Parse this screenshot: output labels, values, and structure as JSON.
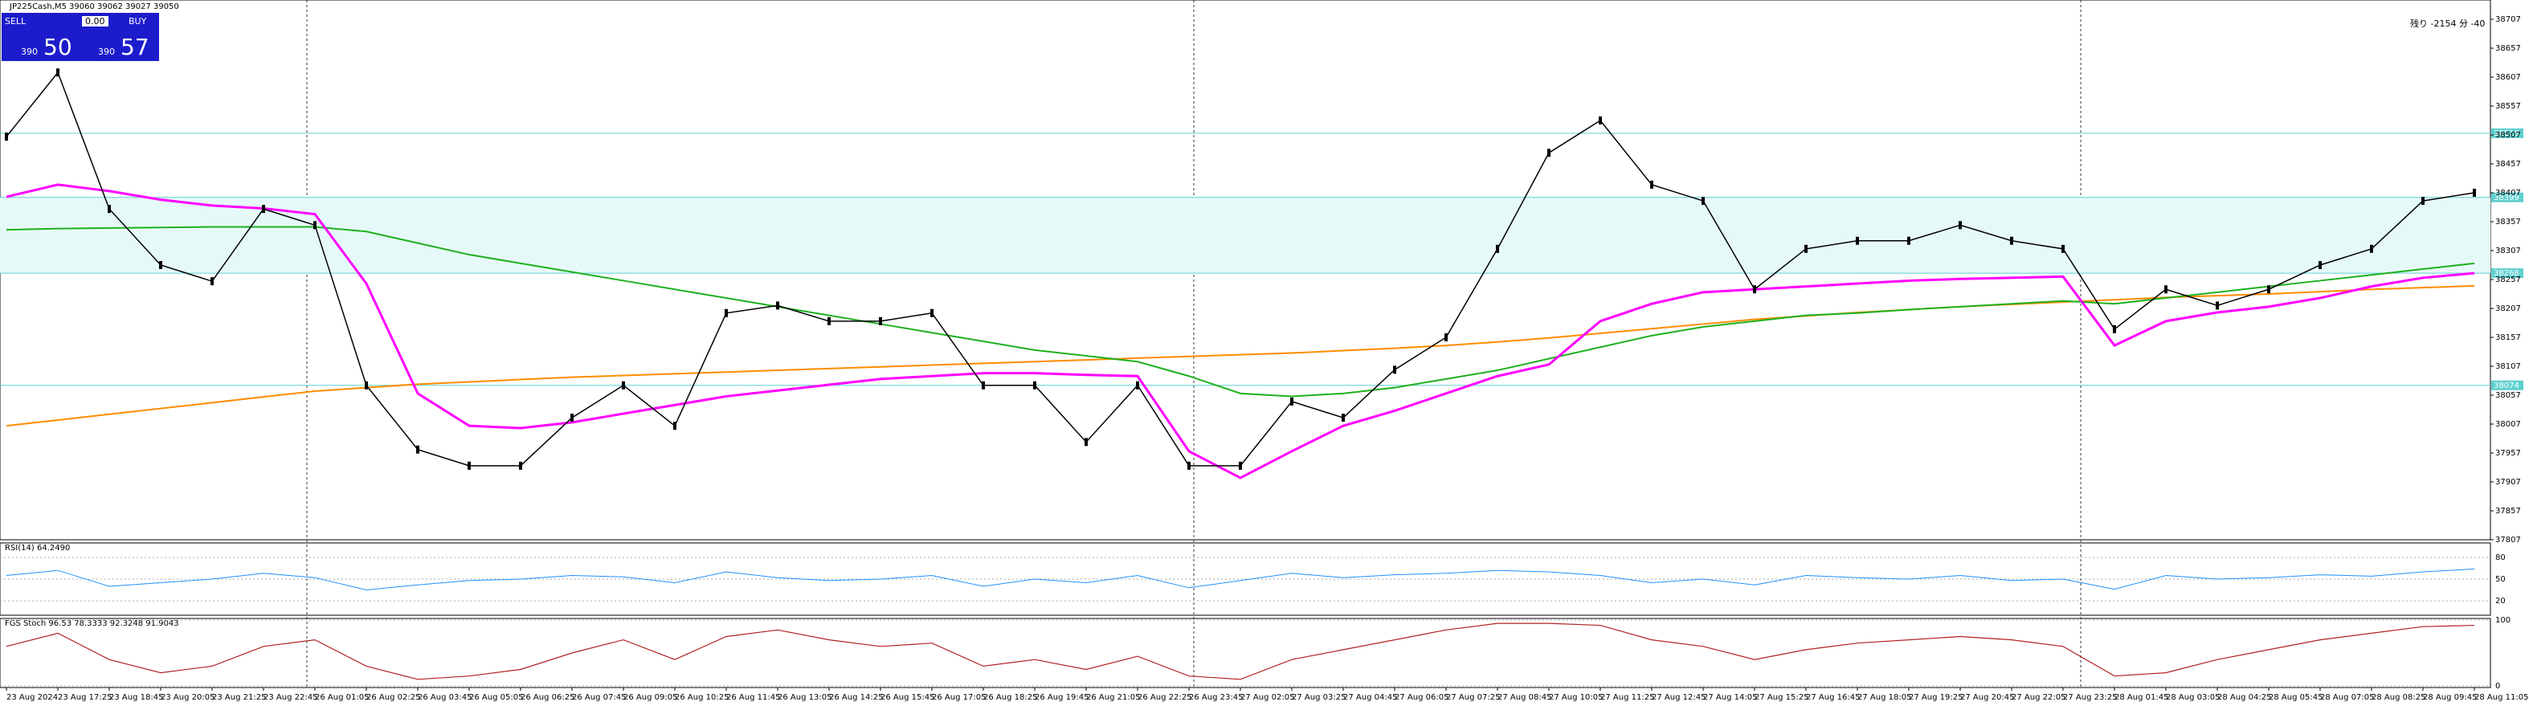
{
  "header": {
    "symbol": "JP225Cash,M5",
    "ohlc": "39060 39062 39027 39050"
  },
  "trade_panel": {
    "sell": "SELL",
    "lots": "0.00",
    "buy": "BUY",
    "sell_small": "390",
    "sell_big": "50",
    "buy_small": "390",
    "buy_big": "57"
  },
  "timer": "残り -2154 分 -40",
  "chart": {
    "price_ticks": [
      38707,
      38657,
      38607,
      38557,
      38507,
      38457,
      38407,
      38357,
      38307,
      38257,
      38207,
      38157,
      38107,
      38057,
      38007,
      37957,
      37907,
      37857,
      37807
    ],
    "levels": [
      38510,
      38399,
      38268,
      38074
    ],
    "time_labels": [
      "23 Aug 2024",
      "23 Aug 17:25",
      "23 Aug 18:45",
      "23 Aug 20:05",
      "23 Aug 21:25",
      "23 Aug 22:45",
      "26 Aug 01:05",
      "26 Aug 02:25",
      "26 Aug 03:45",
      "26 Aug 05:05",
      "26 Aug 06:25",
      "26 Aug 07:45",
      "26 Aug 09:05",
      "26 Aug 10:25",
      "26 Aug 11:45",
      "26 Aug 13:05",
      "26 Aug 14:25",
      "26 Aug 15:45",
      "26 Aug 17:05",
      "26 Aug 18:25",
      "26 Aug 19:45",
      "26 Aug 21:05",
      "26 Aug 22:25",
      "26 Aug 23:45",
      "27 Aug 02:05",
      "27 Aug 03:25",
      "27 Aug 04:45",
      "27 Aug 06:05",
      "27 Aug 07:25",
      "27 Aug 08:45",
      "27 Aug 10:05",
      "27 Aug 11:25",
      "27 Aug 12:45",
      "27 Aug 14:05",
      "27 Aug 15:25",
      "27 Aug 16:45",
      "27 Aug 18:05",
      "27 Aug 19:25",
      "27 Aug 20:45",
      "27 Aug 22:05",
      "27 Aug 23:25",
      "28 Aug 01:45",
      "28 Aug 03:05",
      "28 Aug 04:25",
      "28 Aug 05:45",
      "28 Aug 07:05",
      "28 Aug 08:25",
      "28 Aug 09:45",
      "28 Aug 11:05"
    ],
    "price": [
      38504,
      38615,
      38379,
      38282,
      38254,
      38379,
      38351,
      38074,
      37963,
      37935,
      37935,
      38018,
      38074,
      38004,
      38199,
      38212,
      38185,
      38185,
      38199,
      38074,
      38074,
      37976,
      38074,
      37935,
      37935,
      38046,
      38018,
      38101,
      38157,
      38310,
      38476,
      38532,
      38421,
      38393,
      38240,
      38310,
      38324,
      38324,
      38351,
      38324,
      38310,
      38171,
      38240,
      38212,
      38240,
      38282,
      38310,
      38393,
      38407
    ],
    "ma_pink": [
      38400,
      38421,
      38410,
      38395,
      38385,
      38380,
      38370,
      38250,
      38060,
      38004,
      38000,
      38010,
      38025,
      38040,
      38055,
      38065,
      38075,
      38085,
      38090,
      38095,
      38095,
      38092,
      38090,
      37960,
      37914,
      37960,
      38004,
      38030,
      38060,
      38090,
      38110,
      38185,
      38215,
      38235,
      38240,
      38245,
      38250,
      38255,
      38258,
      38260,
      38262,
      38143,
      38185,
      38200,
      38210,
      38225,
      38245,
      38260,
      38268
    ],
    "ma_orange": [
      38004,
      38014,
      38024,
      38034,
      38044,
      38054,
      38064,
      38070,
      38076,
      38080,
      38084,
      38088,
      38091,
      38094,
      38097,
      38100,
      38103,
      38106,
      38109,
      38112,
      38115,
      38118,
      38121,
      38124,
      38127,
      38130,
      38134,
      38138,
      38143,
      38149,
      38156,
      38164,
      38172,
      38180,
      38188,
      38194,
      38200,
      38205,
      38210,
      38214,
      38218,
      38222,
      38226,
      38229,
      38232,
      38236,
      38240,
      38243,
      38246
    ],
    "ma_green": [
      38343,
      38345,
      38346,
      38347,
      38348,
      38348,
      38348,
      38340,
      38320,
      38300,
      38285,
      38270,
      38255,
      38240,
      38225,
      38210,
      38195,
      38180,
      38165,
      38150,
      38135,
      38125,
      38115,
      38090,
      38060,
      38055,
      38060,
      38070,
      38085,
      38100,
      38120,
      38140,
      38160,
      38175,
      38185,
      38195,
      38199,
      38205,
      38210,
      38215,
      38220,
      38215,
      38225,
      38235,
      38245,
      38255,
      38265,
      38275,
      38285
    ]
  },
  "rsi": {
    "label": "RSI(14) 64.2490",
    "ticks": [
      80,
      50,
      20
    ],
    "values": [
      55,
      62,
      40,
      45,
      50,
      58,
      52,
      35,
      42,
      48,
      50,
      55,
      53,
      45,
      60,
      52,
      48,
      50,
      55,
      40,
      50,
      45,
      55,
      38,
      48,
      58,
      52,
      56,
      58,
      62,
      60,
      55,
      45,
      50,
      42,
      55,
      52,
      50,
      55,
      48,
      50,
      36,
      55,
      50,
      52,
      56,
      54,
      60,
      64
    ]
  },
  "stoch": {
    "label": "FGS Stoch 96.53 78.3333 92.3248 91.9043",
    "ticks": [
      100,
      0
    ],
    "values": [
      60,
      80,
      40,
      20,
      30,
      60,
      70,
      30,
      10,
      15,
      25,
      50,
      70,
      40,
      75,
      85,
      70,
      60,
      65,
      30,
      40,
      25,
      45,
      15,
      10,
      40,
      55,
      70,
      85,
      95,
      95,
      92,
      70,
      60,
      40,
      55,
      65,
      70,
      75,
      70,
      60,
      15,
      20,
      40,
      55,
      70,
      80,
      90,
      92
    ]
  }
}
